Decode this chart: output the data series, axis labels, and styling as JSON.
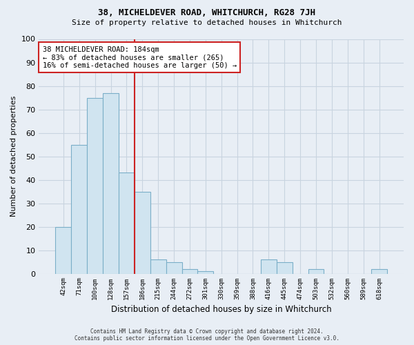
{
  "title": "38, MICHELDEVER ROAD, WHITCHURCH, RG28 7JH",
  "subtitle": "Size of property relative to detached houses in Whitchurch",
  "xlabel": "Distribution of detached houses by size in Whitchurch",
  "ylabel": "Number of detached properties",
  "categories": [
    "42sqm",
    "71sqm",
    "100sqm",
    "128sqm",
    "157sqm",
    "186sqm",
    "215sqm",
    "244sqm",
    "272sqm",
    "301sqm",
    "330sqm",
    "359sqm",
    "388sqm",
    "416sqm",
    "445sqm",
    "474sqm",
    "503sqm",
    "532sqm",
    "560sqm",
    "589sqm",
    "618sqm"
  ],
  "values": [
    20,
    55,
    75,
    77,
    43,
    35,
    6,
    5,
    2,
    1,
    0,
    0,
    0,
    6,
    5,
    0,
    2,
    0,
    0,
    0,
    2
  ],
  "bar_color": "#d0e4f0",
  "bar_edgecolor": "#7aaec8",
  "highlight_index": 5,
  "highlight_color": "#cc2222",
  "annotation_line1": "38 MICHELDEVER ROAD: 184sqm",
  "annotation_line2": "← 83% of detached houses are smaller (265)",
  "annotation_line3": "16% of semi-detached houses are larger (50) →",
  "ylim": [
    0,
    100
  ],
  "yticks": [
    0,
    10,
    20,
    30,
    40,
    50,
    60,
    70,
    80,
    90,
    100
  ],
  "footnote1": "Contains HM Land Registry data © Crown copyright and database right 2024.",
  "footnote2": "Contains public sector information licensed under the Open Government Licence v3.0.",
  "bg_color": "#e8eef5",
  "plot_bg_color": "#e8eef5",
  "grid_color": "#c8d4e0"
}
